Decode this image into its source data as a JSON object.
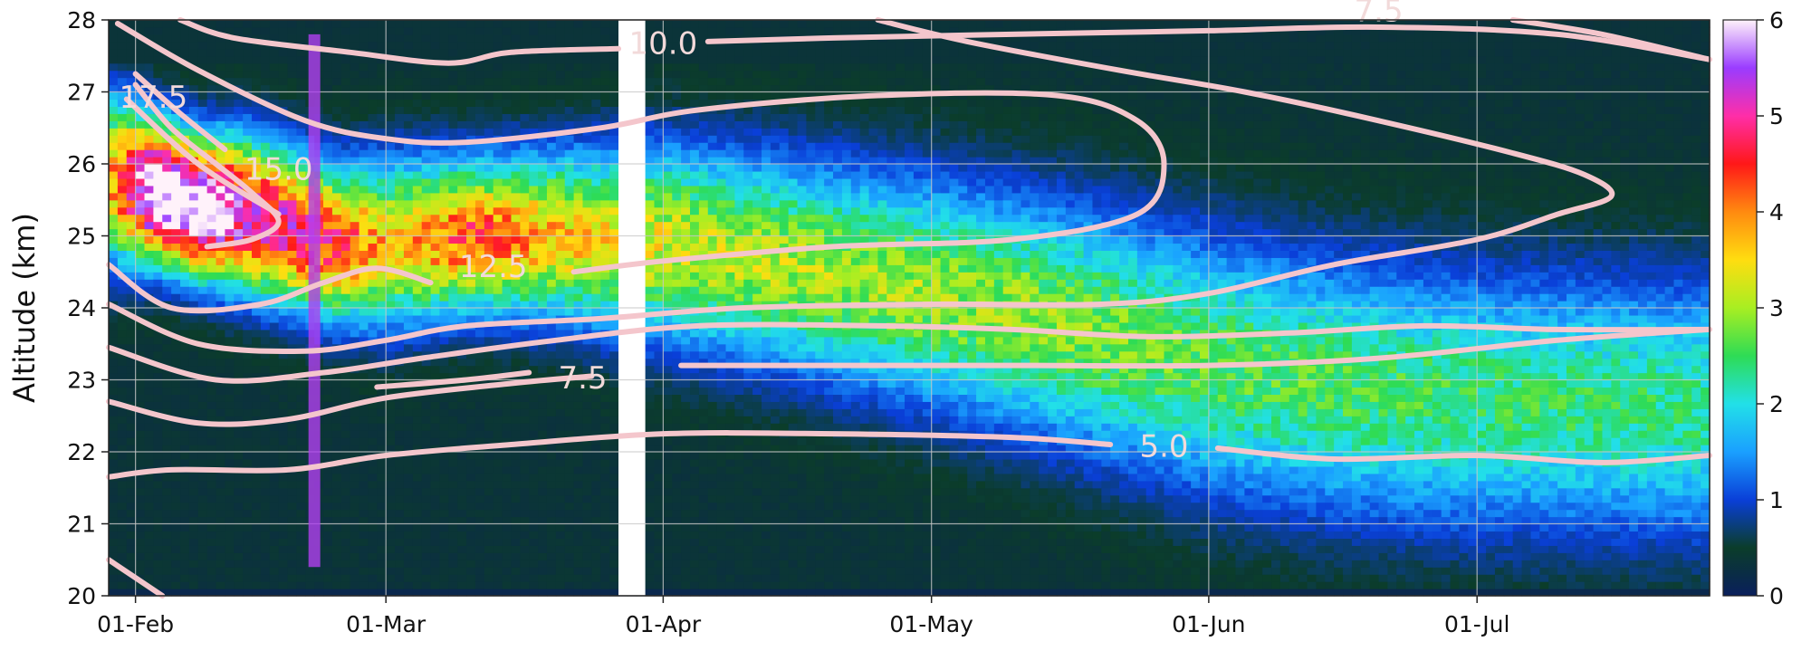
{
  "chart_data": {
    "type": "heatmap",
    "title": "",
    "xlabel": "",
    "ylabel": "Altitude (km)",
    "x_axis": {
      "type": "date",
      "range": [
        "2022-01-29",
        "2022-07-27"
      ],
      "ticks": [
        {
          "date": "2022-02-01",
          "label": "01-Feb"
        },
        {
          "date": "2022-03-01",
          "label": "01-Mar"
        },
        {
          "date": "2022-04-01",
          "label": "01-Apr"
        },
        {
          "date": "2022-05-01",
          "label": "01-May"
        },
        {
          "date": "2022-06-01",
          "label": "01-Jun"
        },
        {
          "date": "2022-07-01",
          "label": "01-Jul"
        }
      ]
    },
    "y_axis": {
      "range": [
        20,
        28
      ],
      "ticks": [
        20,
        21,
        22,
        23,
        24,
        25,
        26,
        27,
        28
      ]
    },
    "grid": true,
    "colorbar": {
      "range": [
        0,
        6
      ],
      "ticks": [
        0,
        1,
        2,
        3,
        4,
        5,
        6
      ],
      "colors": [
        "#0a1f5c",
        "#0b3d2a",
        "#0a3fd8",
        "#1aa0ff",
        "#22e0e8",
        "#2edc55",
        "#a8ee22",
        "#ffdd10",
        "#ff8a10",
        "#ff1818",
        "#ff2ea8",
        "#9a3cff",
        "#fff2fa"
      ]
    },
    "data_gap": {
      "start": "2022-03-27",
      "end": "2022-03-30"
    },
    "vertical_marker": {
      "date": "2022-02-21",
      "from": 20.4,
      "to": 27.8,
      "color": "#b040f0"
    },
    "layers": [
      {
        "date": "2022-01-29",
        "peak_alt": 25.8,
        "peak": 3.6,
        "width": 1.1
      },
      {
        "date": "2022-02-03",
        "peak_alt": 25.6,
        "peak": 6.4,
        "width": 0.9
      },
      {
        "date": "2022-02-08",
        "peak_alt": 25.4,
        "peak": 6.2,
        "width": 0.9
      },
      {
        "date": "2022-02-13",
        "peak_alt": 25.3,
        "peak": 5.0,
        "width": 1.0
      },
      {
        "date": "2022-02-18",
        "peak_alt": 25.1,
        "peak": 4.6,
        "width": 1.0
      },
      {
        "date": "2022-02-23",
        "peak_alt": 24.9,
        "peak": 4.2,
        "width": 1.0
      },
      {
        "date": "2022-03-01",
        "peak_alt": 24.9,
        "peak": 3.2,
        "width": 1.1
      },
      {
        "date": "2022-03-10",
        "peak_alt": 25.0,
        "peak": 4.0,
        "width": 1.0
      },
      {
        "date": "2022-03-20",
        "peak_alt": 25.0,
        "peak": 3.3,
        "width": 1.1
      },
      {
        "date": "2022-04-01",
        "peak_alt": 24.9,
        "peak": 2.9,
        "width": 1.3
      },
      {
        "date": "2022-04-15",
        "peak_alt": 24.6,
        "peak": 2.7,
        "width": 1.4
      },
      {
        "date": "2022-05-01",
        "peak_alt": 24.2,
        "peak": 2.6,
        "width": 1.5
      },
      {
        "date": "2022-05-15",
        "peak_alt": 23.8,
        "peak": 2.5,
        "width": 1.6
      },
      {
        "date": "2022-06-01",
        "peak_alt": 23.2,
        "peak": 2.3,
        "width": 1.7
      },
      {
        "date": "2022-06-15",
        "peak_alt": 22.9,
        "peak": 2.2,
        "width": 1.7
      },
      {
        "date": "2022-07-01",
        "peak_alt": 22.7,
        "peak": 2.1,
        "width": 1.7
      },
      {
        "date": "2022-07-27",
        "peak_alt": 22.6,
        "peak": 2.0,
        "width": 1.7
      }
    ],
    "contours": [
      {
        "level": "10.0",
        "segments": [
          [
            [
              "2022-02-06",
              28.0
            ],
            [
              "2022-02-12",
              27.75
            ],
            [
              "2022-02-25",
              27.55
            ],
            [
              "2022-03-08",
              27.4
            ],
            [
              "2022-03-15",
              27.55
            ],
            [
              "2022-03-27",
              27.6
            ]
          ],
          [
            [
              "2022-04-06",
              27.7
            ],
            [
              "2022-04-20",
              27.75
            ],
            [
              "2022-05-10",
              27.8
            ],
            [
              "2022-06-01",
              27.85
            ],
            [
              "2022-06-20",
              27.9
            ],
            [
              "2022-07-10",
              27.8
            ],
            [
              "2022-07-27",
              27.45
            ]
          ]
        ],
        "label": {
          "date": "2022-04-01",
          "alt": 27.65
        }
      },
      {
        "level": "7.5",
        "segments": [
          [
            [
              "2022-07-05",
              28.0
            ],
            [
              "2022-07-15",
              27.8
            ],
            [
              "2022-07-27",
              27.45
            ]
          ]
        ],
        "label": {
          "date": "2022-06-20",
          "alt": 28.1
        }
      },
      {
        "level": "12.5",
        "segments": [
          [
            [
              "2022-01-30",
              27.95
            ],
            [
              "2022-02-08",
              27.3
            ],
            [
              "2022-02-20",
              26.6
            ],
            [
              "2022-03-01",
              26.35
            ],
            [
              "2022-03-10",
              26.3
            ],
            [
              "2022-03-25",
              26.5
            ],
            [
              "2022-04-05",
              26.75
            ],
            [
              "2022-04-25",
              26.95
            ],
            [
              "2022-05-15",
              26.95
            ],
            [
              "2022-05-24",
              26.6
            ],
            [
              "2022-05-27",
              26.0
            ],
            [
              "2022-05-24",
              25.3
            ],
            [
              "2022-05-10",
              24.95
            ],
            [
              "2022-04-20",
              24.85
            ],
            [
              "2022-04-01",
              24.65
            ],
            [
              "2022-03-22",
              24.5
            ]
          ]
        ],
        "label": {
          "date": "2022-03-13",
          "alt": 24.55
        }
      },
      {
        "level": "15.0",
        "segments": [
          [
            [
              "2022-02-01",
              27.1
            ],
            [
              "2022-02-05",
              26.5
            ],
            [
              "2022-02-10",
              26.0
            ],
            [
              "2022-02-14",
              25.6
            ],
            [
              "2022-02-17",
              25.2
            ],
            [
              "2022-02-14",
              24.95
            ],
            [
              "2022-02-09",
              24.85
            ]
          ]
        ],
        "label": {
          "date": "2022-02-17",
          "alt": 25.9
        }
      },
      {
        "level": "17.5",
        "segments": [
          [
            [
              "2022-02-01",
              27.25
            ],
            [
              "2022-02-06",
              26.7
            ],
            [
              "2022-02-11",
              26.2
            ]
          ]
        ],
        "label": {
          "date": "2022-02-03",
          "alt": 26.9
        }
      },
      {
        "level": "",
        "segments": [
          [
            [
              "2022-01-31",
              26.9
            ],
            [
              "2022-02-08",
              26.0
            ],
            [
              "2022-02-17",
              25.3
            ]
          ],
          [
            [
              "2022-01-29",
              24.6
            ],
            [
              "2022-02-05",
              24.0
            ],
            [
              "2022-02-15",
              24.05
            ],
            [
              "2022-02-22",
              24.35
            ],
            [
              "2022-02-28",
              24.55
            ],
            [
              "2022-03-06",
              24.35
            ]
          ],
          [
            [
              "2022-01-29",
              24.05
            ],
            [
              "2022-02-08",
              23.5
            ],
            [
              "2022-02-20",
              23.4
            ],
            [
              "2022-03-01",
              23.55
            ],
            [
              "2022-03-10",
              23.75
            ],
            [
              "2022-03-25",
              23.85
            ],
            [
              "2022-04-10",
              24.0
            ],
            [
              "2022-05-01",
              24.05
            ],
            [
              "2022-05-20",
              24.05
            ],
            [
              "2022-06-01",
              24.2
            ],
            [
              "2022-06-15",
              24.6
            ],
            [
              "2022-07-01",
              24.95
            ],
            [
              "2022-07-10",
              25.3
            ],
            [
              "2022-07-16",
              25.55
            ],
            [
              "2022-07-13",
              25.85
            ],
            [
              "2022-07-05",
              26.15
            ],
            [
              "2022-06-20",
              26.6
            ],
            [
              "2022-06-05",
              27.0
            ],
            [
              "2022-05-22",
              27.3
            ],
            [
              "2022-05-05",
              27.7
            ],
            [
              "2022-04-25",
              28.0
            ]
          ],
          [
            [
              "2022-01-29",
              23.45
            ],
            [
              "2022-02-10",
              23.0
            ],
            [
              "2022-02-22",
              23.1
            ],
            [
              "2022-03-05",
              23.3
            ],
            [
              "2022-03-20",
              23.55
            ],
            [
              "2022-04-05",
              23.75
            ],
            [
              "2022-04-25",
              23.75
            ],
            [
              "2022-05-10",
              23.7
            ],
            [
              "2022-05-25",
              23.6
            ],
            [
              "2022-06-10",
              23.65
            ],
            [
              "2022-06-25",
              23.75
            ],
            [
              "2022-07-10",
              23.7
            ],
            [
              "2022-07-27",
              23.7
            ]
          ],
          [
            [
              "2022-01-29",
              22.7
            ],
            [
              "2022-02-08",
              22.4
            ],
            [
              "2022-02-18",
              22.45
            ],
            [
              "2022-03-01",
              22.75
            ],
            [
              "2022-03-15",
              22.95
            ],
            [
              "2022-03-24",
              23.05
            ]
          ],
          [
            [
              "2022-01-29",
              20.5
            ],
            [
              "2022-02-04",
              20.0
            ]
          ]
        ],
        "label": null
      },
      {
        "level": "7.5",
        "segments": [
          [
            [
              "2022-02-28",
              22.9
            ],
            [
              "2022-03-10",
              23.0
            ],
            [
              "2022-03-17",
              23.1
            ]
          ],
          [
            [
              "2022-04-03",
              23.2
            ],
            [
              "2022-04-20",
              23.2
            ],
            [
              "2022-05-10",
              23.2
            ],
            [
              "2022-06-01",
              23.2
            ],
            [
              "2022-06-20",
              23.3
            ],
            [
              "2022-07-10",
              23.55
            ],
            [
              "2022-07-27",
              23.7
            ]
          ]
        ],
        "label": {
          "date": "2022-03-23",
          "alt": 23.0
        }
      },
      {
        "level": "5.0",
        "segments": [
          [
            [
              "2022-01-29",
              21.65
            ],
            [
              "2022-02-05",
              21.75
            ],
            [
              "2022-02-18",
              21.75
            ],
            [
              "2022-03-01",
              21.95
            ],
            [
              "2022-03-15",
              22.1
            ],
            [
              "2022-04-01",
              22.25
            ],
            [
              "2022-04-20",
              22.25
            ],
            [
              "2022-05-10",
              22.2
            ],
            [
              "2022-05-21",
              22.1
            ]
          ],
          [
            [
              "2022-06-02",
              22.05
            ],
            [
              "2022-06-15",
              21.9
            ],
            [
              "2022-07-01",
              21.95
            ],
            [
              "2022-07-15",
              21.85
            ],
            [
              "2022-07-27",
              21.95
            ]
          ]
        ],
        "label": {
          "date": "2022-05-27",
          "alt": 22.05
        }
      }
    ]
  }
}
